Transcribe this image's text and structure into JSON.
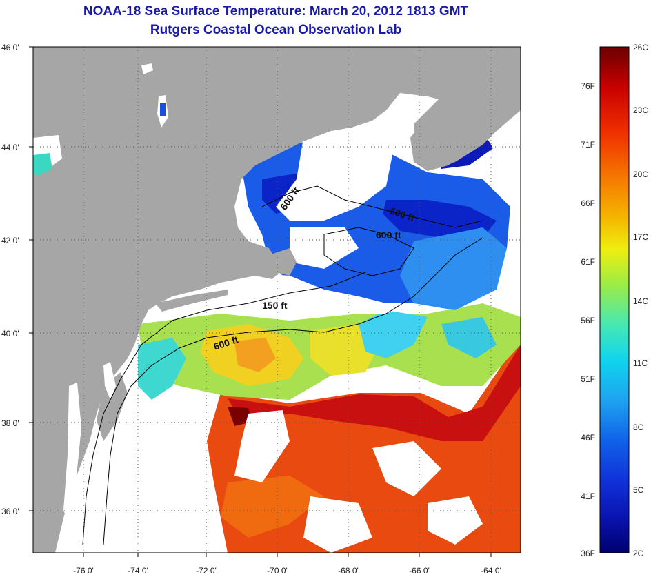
{
  "header": {
    "title": "NOAA-18 Sea Surface Temperature:  March 20, 2012 1813 GMT",
    "subtitle": "Rutgers Coastal Ocean Observation Lab"
  },
  "map": {
    "lat_ticks": [
      "46 0'",
      "44 0'",
      "42 0'",
      "40 0'",
      "38 0'",
      "36 0'"
    ],
    "lon_ticks": [
      "-76 0'",
      "-74 0'",
      "-72 0'",
      "-70 0'",
      "-68 0'",
      "-66 0'",
      "-64 0'"
    ],
    "contour_labels": [
      "600 ft",
      "600 ft",
      "600 ft",
      "150 ft",
      "600 ft"
    ]
  },
  "colorbar": {
    "fahrenheit": [
      "76F",
      "71F",
      "66F",
      "61F",
      "56F",
      "51F",
      "46F",
      "41F",
      "36F"
    ],
    "celsius": [
      "26C",
      "23C",
      "20C",
      "17C",
      "14C",
      "11C",
      "8C",
      "5C",
      "2C"
    ],
    "colors": [
      "#6b0000",
      "#c80000",
      "#f03000",
      "#f57a00",
      "#f5b800",
      "#eeee10",
      "#9cec46",
      "#46e8b4",
      "#10d4ee",
      "#1ea2f0",
      "#1060e8",
      "#1030d8",
      "#0a14b0",
      "#000070"
    ]
  },
  "palette": {
    "land": "#a6a6a6",
    "cloud": "#ffffff",
    "frame": "#000000",
    "grid": "#555555"
  }
}
